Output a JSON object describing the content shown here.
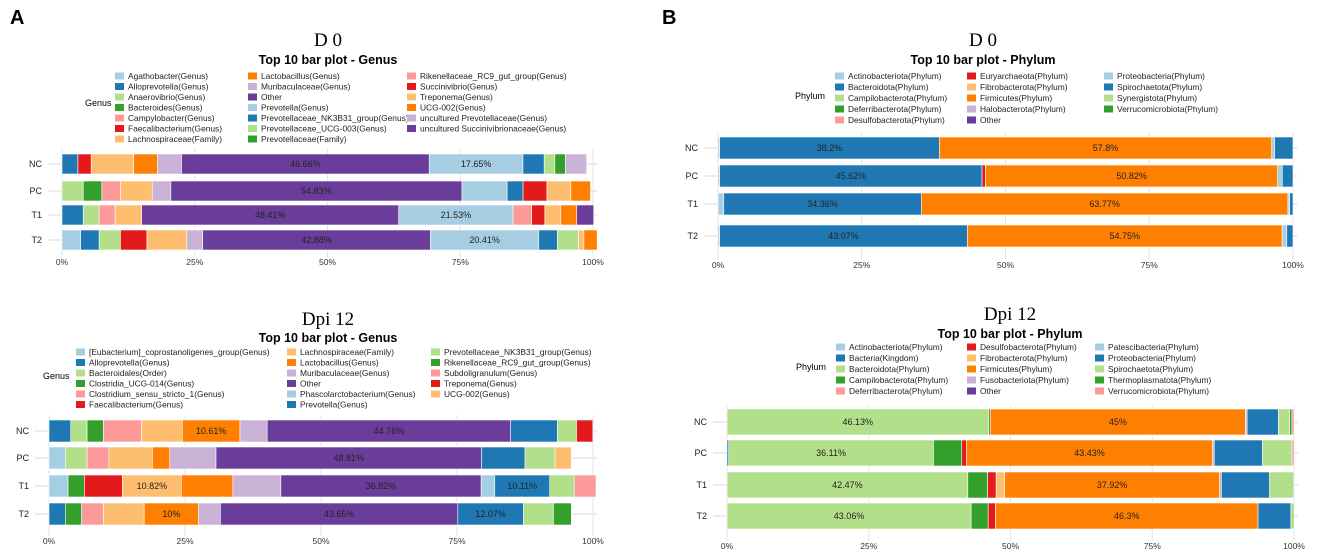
{
  "figure": {
    "panel_a": "A",
    "panel_b": "B"
  },
  "axis_ticks": [
    "0%",
    "25%",
    "50%",
    "75%",
    "100%"
  ],
  "colors": {
    "lightblue": "#A6CEE3",
    "blue": "#1F78B4",
    "lightgreen": "#B2DF8A",
    "green": "#33A02C",
    "pink": "#FB9A99",
    "red": "#E31A1C",
    "lightorange": "#FDBF6F",
    "orange": "#FF7F00",
    "lavender": "#CAB2D6",
    "purple": "#6A3D9A"
  },
  "chart_data": [
    {
      "id": "d0_genus",
      "type": "bar",
      "orientation": "horizontal",
      "stacked": true,
      "day_title": "D 0",
      "title": "Top 10 bar plot - Genus",
      "legend_title": "Genus",
      "categories": [
        "NC",
        "PC",
        "T1",
        "T2"
      ],
      "xlim": [
        0,
        100
      ],
      "series": [
        {
          "name": "Agathobacter(Genus)",
          "color": "#A6CEE3",
          "values": [
            0,
            0,
            0,
            3.5
          ]
        },
        {
          "name": "Alloprevotella(Genus)",
          "color": "#1F78B4",
          "values": [
            3,
            0,
            4,
            3.5
          ]
        },
        {
          "name": "Anaerovibrio(Genus)",
          "color": "#B2DF8A",
          "values": [
            0,
            4,
            3,
            4
          ]
        },
        {
          "name": "Bacteroides(Genus)",
          "color": "#33A02C",
          "values": [
            0,
            3.5,
            0,
            0
          ]
        },
        {
          "name": "Campylobacter(Genus)",
          "color": "#FB9A99",
          "values": [
            0,
            3.5,
            3,
            0
          ]
        },
        {
          "name": "Faecalibacterium(Genus)",
          "color": "#E31A1C",
          "values": [
            2.5,
            0,
            0,
            5
          ]
        },
        {
          "name": "Lachnospiraceae(Family)",
          "color": "#FDBF6F",
          "values": [
            8,
            6,
            5,
            7.5
          ]
        },
        {
          "name": "Lactobacillus(Genus)",
          "color": "#FF7F00",
          "values": [
            4.5,
            0,
            0,
            0
          ]
        },
        {
          "name": "Muribaculaceae(Genus)",
          "color": "#CAB2D6",
          "values": [
            4.5,
            3.5,
            0,
            3
          ]
        },
        {
          "name": "Other",
          "color": "#6A3D9A",
          "values": [
            46.66,
            54.83,
            48.41,
            42.88
          ]
        },
        {
          "name": "Prevotella(Genus)",
          "color": "#A6CEE3",
          "values": [
            17.65,
            8.5,
            21.53,
            20.41
          ]
        },
        {
          "name": "Prevotellaceae_NK3B31_group(Genus)",
          "color": "#1F78B4",
          "values": [
            4,
            3,
            0,
            3.5
          ]
        },
        {
          "name": "Prevotellaceae_UCG-003(Genus)",
          "color": "#B2DF8A",
          "values": [
            2,
            0,
            0,
            4
          ]
        },
        {
          "name": "Prevotellaceae(Family)",
          "color": "#33A02C",
          "values": [
            2,
            0,
            0,
            0
          ]
        },
        {
          "name": "Rikenellaceae_RC9_gut_group(Genus)",
          "color": "#FB9A99",
          "values": [
            0,
            0,
            3.5,
            0
          ]
        },
        {
          "name": "Succinivibrio(Genus)",
          "color": "#E31A1C",
          "values": [
            0,
            4.5,
            2.5,
            0
          ]
        },
        {
          "name": "Treponema(Genus)",
          "color": "#FDBF6F",
          "values": [
            0,
            4.5,
            3,
            1
          ]
        },
        {
          "name": "UCG-002(Genus)",
          "color": "#FF7F00",
          "values": [
            0,
            3.7,
            3,
            2.5
          ]
        },
        {
          "name": "uncultured Prevotellaceae(Genus)",
          "color": "#CAB2D6",
          "values": [
            4,
            0,
            0,
            0
          ]
        },
        {
          "name": "uncultured Succinivibrionaceae(Genus)",
          "color": "#6A3D9A",
          "values": [
            0,
            0,
            3.2,
            0
          ]
        }
      ]
    },
    {
      "id": "d0_phylum",
      "type": "bar",
      "orientation": "horizontal",
      "stacked": true,
      "day_title": "D 0",
      "title": "Top 10 bar plot - Phylum",
      "legend_title": "Phylum",
      "categories": [
        "NC",
        "PC",
        "T1",
        "T2"
      ],
      "xlim": [
        0,
        100
      ],
      "series": [
        {
          "name": "Actinobacteriota(Phylum)",
          "color": "#A6CEE3",
          "values": [
            0.3,
            0.3,
            1,
            0.3
          ]
        },
        {
          "name": "Bacteroidota(Phylum)",
          "color": "#1F78B4",
          "values": [
            38.2,
            45.62,
            34.36,
            43.07
          ]
        },
        {
          "name": "Campilobacterota(Phylum)",
          "color": "#B2DF8A",
          "values": [
            0,
            0,
            0,
            0
          ]
        },
        {
          "name": "Deferribacterota(Phylum)",
          "color": "#33A02C",
          "values": [
            0,
            0,
            0,
            0
          ]
        },
        {
          "name": "Desulfobacterota(Phylum)",
          "color": "#FB9A99",
          "values": [
            0,
            0,
            0,
            0
          ]
        },
        {
          "name": "Euryarchaeota(Phylum)",
          "color": "#E31A1C",
          "values": [
            0,
            0.6,
            0,
            0
          ]
        },
        {
          "name": "Fibrobacterota(Phylum)",
          "color": "#FDBF6F",
          "values": [
            0,
            0,
            0,
            0
          ]
        },
        {
          "name": "Firmicutes(Phylum)",
          "color": "#FF7F00",
          "values": [
            57.8,
            50.82,
            63.77,
            54.75
          ]
        },
        {
          "name": "Halobacterota(Phylum)",
          "color": "#CAB2D6",
          "values": [
            0,
            0,
            0,
            0
          ]
        },
        {
          "name": "Other",
          "color": "#6A3D9A",
          "values": [
            0,
            0,
            0,
            0
          ]
        },
        {
          "name": "Proteobacteria(Phylum)",
          "color": "#A6CEE3",
          "values": [
            0.5,
            0.8,
            0.3,
            0.8
          ]
        },
        {
          "name": "Spirochaetota(Phylum)",
          "color": "#1F78B4",
          "values": [
            3.2,
            1.86,
            0.57,
            1.08
          ]
        },
        {
          "name": "Synergistota(Phylum)",
          "color": "#B2DF8A",
          "values": [
            0,
            0,
            0,
            0
          ]
        },
        {
          "name": "Verrucomicrobiota(Phylum)",
          "color": "#33A02C",
          "values": [
            0,
            0,
            0,
            0
          ]
        }
      ]
    },
    {
      "id": "dpi12_genus",
      "type": "bar",
      "orientation": "horizontal",
      "stacked": true,
      "day_title": "Dpi 12",
      "title": "Top 10 bar plot - Genus",
      "legend_title": "Genus",
      "categories": [
        "NC",
        "PC",
        "T1",
        "T2"
      ],
      "xlim": [
        0,
        100
      ],
      "series": [
        {
          "name": "[Eubacterium]_coprostanoligenes_group(Genus)",
          "color": "#A6CEE3",
          "values": [
            0,
            3,
            3.5,
            0
          ]
        },
        {
          "name": "Alloprevotella(Genus)",
          "color": "#1F78B4",
          "values": [
            4,
            0,
            0,
            3
          ]
        },
        {
          "name": "Bacteroidales(Order)",
          "color": "#B2DF8A",
          "values": [
            3,
            4,
            0,
            0
          ]
        },
        {
          "name": "Clostridia_UCG-014(Genus)",
          "color": "#33A02C",
          "values": [
            3,
            0,
            3,
            3
          ]
        },
        {
          "name": "Clostridium_sensu_stricto_1(Genus)",
          "color": "#FB9A99",
          "values": [
            7,
            4,
            0,
            4
          ]
        },
        {
          "name": "Faecalibacterium(Genus)",
          "color": "#E31A1C",
          "values": [
            0,
            0,
            7,
            0
          ]
        },
        {
          "name": "Lachnospiraceae(Family)",
          "color": "#FDBF6F",
          "values": [
            7.5,
            8,
            10.82,
            7.5
          ]
        },
        {
          "name": "Lactobacillus(Genus)",
          "color": "#FF7F00",
          "values": [
            10.61,
            3.2,
            9.5,
            10
          ]
        },
        {
          "name": "Muribaculaceae(Genus)",
          "color": "#CAB2D6",
          "values": [
            5,
            8.5,
            8.8,
            4
          ]
        },
        {
          "name": "Other",
          "color": "#6A3D9A",
          "values": [
            44.76,
            48.81,
            36.82,
            43.65
          ]
        },
        {
          "name": "Phascolarctobacterium(Genus)",
          "color": "#A6CEE3",
          "values": [
            0,
            0,
            2.5,
            0
          ]
        },
        {
          "name": "Prevotella(Genus)",
          "color": "#1F78B4",
          "values": [
            8.6,
            8,
            10.11,
            12.07
          ]
        },
        {
          "name": "Prevotellaceae_NK3B31_group(Genus)",
          "color": "#B2DF8A",
          "values": [
            3.5,
            5.5,
            4.5,
            5.5
          ]
        },
        {
          "name": "Rikenellaceae_RC9_gut_group(Genus)",
          "color": "#33A02C",
          "values": [
            0,
            0,
            0,
            3.3
          ]
        },
        {
          "name": "Subdoligranulum(Genus)",
          "color": "#FB9A99",
          "values": [
            0,
            0,
            4,
            0
          ]
        },
        {
          "name": "Treponema(Genus)",
          "color": "#E31A1C",
          "values": [
            3,
            0,
            0,
            0
          ]
        },
        {
          "name": "UCG-002(Genus)",
          "color": "#FDBF6F",
          "values": [
            0,
            3,
            0,
            0
          ]
        }
      ]
    },
    {
      "id": "dpi12_phylum",
      "type": "bar",
      "orientation": "horizontal",
      "stacked": true,
      "day_title": "Dpi 12",
      "title": "Top 10 bar plot - Phylum",
      "legend_title": "Phylum",
      "categories": [
        "NC",
        "PC",
        "T1",
        "T2"
      ],
      "xlim": [
        0,
        100
      ],
      "series": [
        {
          "name": "Actinobacteriota(Phylum)",
          "color": "#A6CEE3",
          "values": [
            0,
            0,
            0,
            0
          ]
        },
        {
          "name": "Bacteria(Kingdom)",
          "color": "#1F78B4",
          "values": [
            0,
            0.3,
            0,
            0
          ]
        },
        {
          "name": "Bacteroidota(Phylum)",
          "color": "#B2DF8A",
          "values": [
            46.13,
            36.11,
            42.47,
            43.06
          ]
        },
        {
          "name": "Campilobacterota(Phylum)",
          "color": "#33A02C",
          "values": [
            0.3,
            5,
            3.5,
            3
          ]
        },
        {
          "name": "Deferribacterota(Phylum)",
          "color": "#FB9A99",
          "values": [
            0,
            0,
            0,
            0
          ]
        },
        {
          "name": "Desulfobacterota(Phylum)",
          "color": "#E31A1C",
          "values": [
            0,
            0.8,
            1.5,
            1.3
          ]
        },
        {
          "name": "Fibrobacterota(Phylum)",
          "color": "#FDBF6F",
          "values": [
            0,
            0,
            1.5,
            0
          ]
        },
        {
          "name": "Firmicutes(Phylum)",
          "color": "#FF7F00",
          "values": [
            45,
            43.43,
            37.92,
            46.3
          ]
        },
        {
          "name": "Fusobacteriota(Phylum)",
          "color": "#CAB2D6",
          "values": [
            0.3,
            0.3,
            0.3,
            0
          ]
        },
        {
          "name": "Other",
          "color": "#6A3D9A",
          "values": [
            0,
            0,
            0,
            0
          ]
        },
        {
          "name": "Patescibacteria(Phylum)",
          "color": "#A6CEE3",
          "values": [
            0,
            0,
            0,
            0
          ]
        },
        {
          "name": "Proteobacteria(Phylum)",
          "color": "#1F78B4",
          "values": [
            5.5,
            8.5,
            8.5,
            5.8
          ]
        },
        {
          "name": "Spirochaetota(Phylum)",
          "color": "#B2DF8A",
          "values": [
            2,
            5.2,
            4.3,
            0.6
          ]
        },
        {
          "name": "Thermoplasmatota(Phylum)",
          "color": "#33A02C",
          "values": [
            0.4,
            0,
            0,
            0
          ]
        },
        {
          "name": "Verrucomicrobiota(Phylum)",
          "color": "#FB9A99",
          "values": [
            0.37,
            0.36,
            0,
            0
          ]
        }
      ]
    }
  ]
}
